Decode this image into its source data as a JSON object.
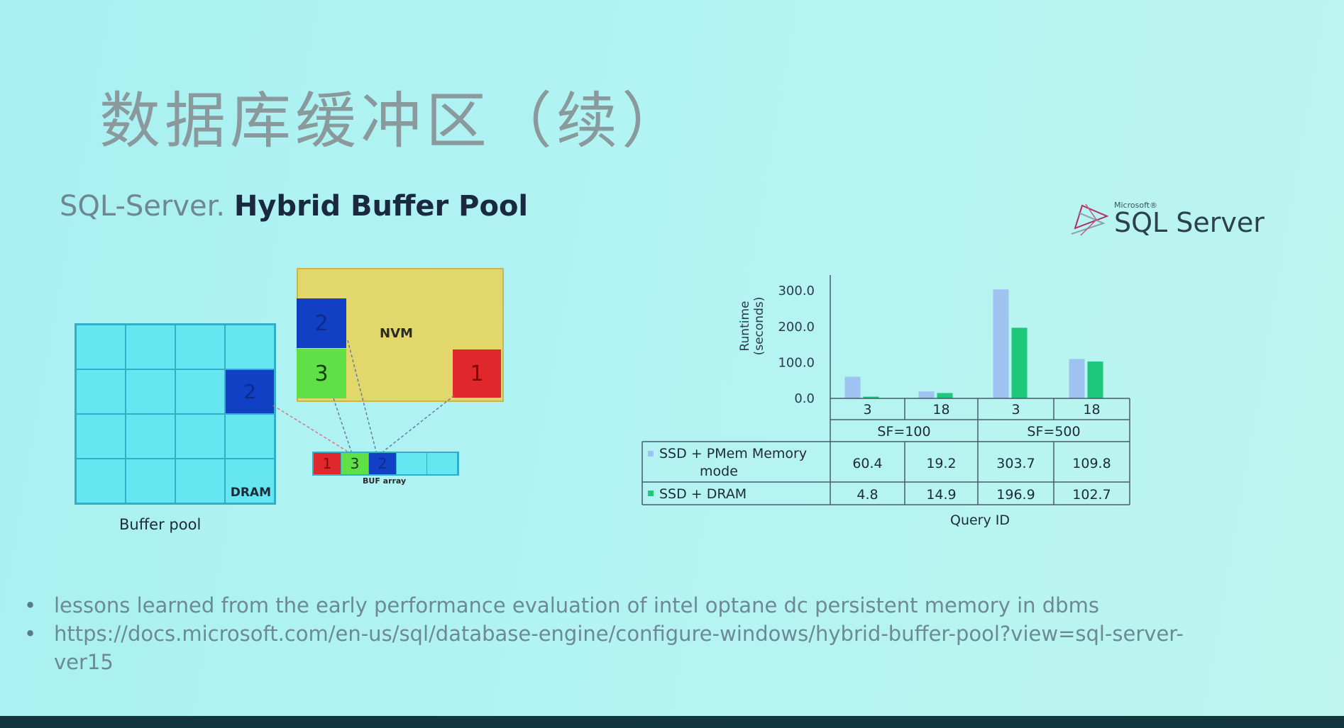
{
  "slide": {
    "title": "数据库缓冲区（续）",
    "subtitle_light": "SQL-Server.",
    "subtitle_bold": "Hybrid Buffer Pool",
    "logo_small": "Microsoft®",
    "logo_text": "SQL Server"
  },
  "diagram": {
    "dram_label": "DRAM",
    "buffer_pool_label": "Buffer pool",
    "dram_page": "2",
    "nvm_label": "NVM",
    "nvm_pages": [
      "2",
      "3",
      "1"
    ],
    "buf_array": [
      "1",
      "3",
      "2",
      "",
      ""
    ],
    "buf_array_label": "BUF array"
  },
  "chart_data": {
    "type": "bar",
    "ylabel": "Runtime (seconds)",
    "xlabel": "Query ID",
    "yticks": [
      "300.0",
      "200.0",
      "100.0",
      "0.0"
    ],
    "ylim": [
      0,
      330
    ],
    "groups": [
      "SF=100",
      "SF=500"
    ],
    "categories": [
      "3",
      "18",
      "3",
      "18"
    ],
    "series": [
      {
        "name": "SSD + PMem Memory mode",
        "values": [
          60.4,
          19.2,
          303.7,
          109.8
        ],
        "color": "#9ec3f0"
      },
      {
        "name": "SSD + DRAM",
        "values": [
          4.8,
          14.9,
          196.9,
          102.7
        ],
        "color": "#1ec87a"
      }
    ],
    "table_values": [
      [
        "60.4",
        "19.2",
        "303.7",
        "109.8"
      ],
      [
        "4.8",
        "14.9",
        "196.9",
        "102.7"
      ]
    ],
    "legend_row1_line1": "SSD + PMem Memory",
    "legend_row1_line2": "mode",
    "legend_row2": "SSD + DRAM"
  },
  "bullets": [
    "lessons learned from the early performance evaluation of intel optane dc persistent memory in dbms",
    "https://docs.microsoft.com/en-us/sql/database-engine/configure-windows/hybrid-buffer-pool?view=sql-server-",
    "ver15"
  ],
  "bullet_marker": "•"
}
